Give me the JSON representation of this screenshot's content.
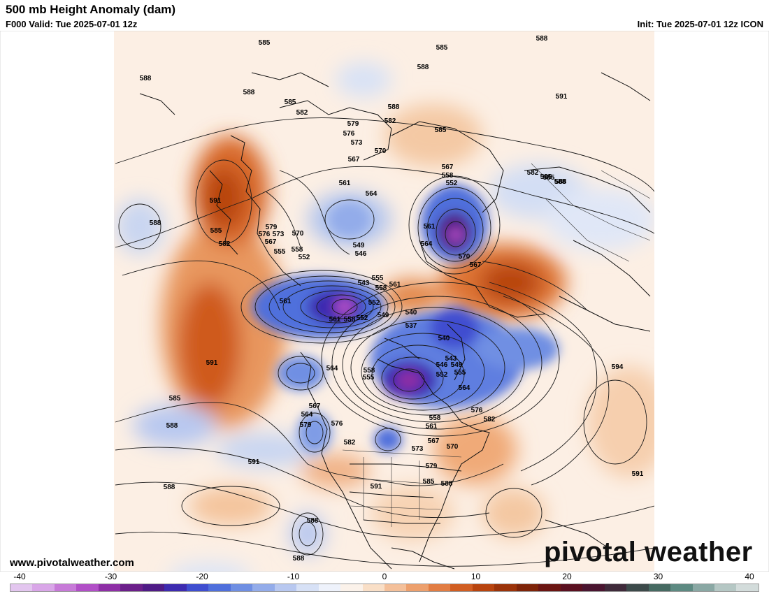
{
  "header": {
    "title": "500 mb Height Anomaly (dam)",
    "valid": "F000 Valid: Tue 2025-07-01 12z",
    "init": "Init: Tue 2025-07-01 12z ICON"
  },
  "footer": {
    "website": "www.pivotalweather.com",
    "brand": "pivotal weather"
  },
  "colorbar": {
    "ticks": [
      "-40",
      "-30",
      "-20",
      "-10",
      "0",
      "10",
      "20",
      "30",
      "40"
    ],
    "colors": [
      "#e3c6ef",
      "#d9a6e8",
      "#c77ad8",
      "#b14fc7",
      "#8e2fa6",
      "#6b1f8a",
      "#4f1b86",
      "#3d2bb0",
      "#3f4ed0",
      "#4f6fdc",
      "#6f8fe3",
      "#93acea",
      "#b8c8f0",
      "#d7e1f6",
      "#eef2fb",
      "#fbf2ea",
      "#f9dfc7",
      "#f4c09a",
      "#eda06d",
      "#e27d43",
      "#d15e22",
      "#b8440e",
      "#9b3309",
      "#7e2408",
      "#6b1512",
      "#5a1020",
      "#4a1530",
      "#3f2a3a",
      "#3c4a4a",
      "#466a62",
      "#5d8a82",
      "#8aa8a4",
      "#b5c7c4",
      "#d3dcdb"
    ]
  },
  "map": {
    "contour_labels": [
      {
        "text": "585"
      },
      {
        "text": "585"
      },
      {
        "text": "588"
      },
      {
        "text": "588"
      },
      {
        "text": "588"
      },
      {
        "text": "585"
      },
      {
        "text": "582"
      },
      {
        "text": "582"
      },
      {
        "text": "579"
      },
      {
        "text": "576"
      },
      {
        "text": "573"
      },
      {
        "text": "570"
      },
      {
        "text": "567"
      },
      {
        "text": "561"
      },
      {
        "text": "564"
      },
      {
        "text": "585"
      },
      {
        "text": "567"
      },
      {
        "text": "558"
      },
      {
        "text": "552"
      },
      {
        "text": "561"
      },
      {
        "text": "564"
      },
      {
        "text": "570"
      },
      {
        "text": "567"
      },
      {
        "text": "588"
      },
      {
        "text": "582"
      },
      {
        "text": "585"
      },
      {
        "text": "588"
      },
      {
        "text": "591"
      },
      {
        "text": "585"
      },
      {
        "text": "582"
      },
      {
        "text": "579"
      },
      {
        "text": "576"
      },
      {
        "text": "573"
      },
      {
        "text": "567"
      },
      {
        "text": "570"
      },
      {
        "text": "555"
      },
      {
        "text": "558"
      },
      {
        "text": "552"
      },
      {
        "text": "549"
      },
      {
        "text": "546"
      },
      {
        "text": "543"
      },
      {
        "text": "555"
      },
      {
        "text": "558"
      },
      {
        "text": "561"
      },
      {
        "text": "552"
      },
      {
        "text": "561"
      },
      {
        "text": "561"
      },
      {
        "text": "558"
      },
      {
        "text": "552"
      },
      {
        "text": "549"
      },
      {
        "text": "540"
      },
      {
        "text": "537"
      },
      {
        "text": "540"
      },
      {
        "text": "543"
      },
      {
        "text": "546"
      },
      {
        "text": "549"
      },
      {
        "text": "552"
      },
      {
        "text": "555"
      },
      {
        "text": "558"
      },
      {
        "text": "564"
      },
      {
        "text": "555"
      },
      {
        "text": "588"
      },
      {
        "text": "591"
      },
      {
        "text": "585"
      },
      {
        "text": "588"
      },
      {
        "text": "567"
      },
      {
        "text": "564"
      },
      {
        "text": "579"
      },
      {
        "text": "576"
      },
      {
        "text": "582"
      },
      {
        "text": "558"
      },
      {
        "text": "561"
      },
      {
        "text": "567"
      },
      {
        "text": "573"
      },
      {
        "text": "570"
      },
      {
        "text": "579"
      },
      {
        "text": "585"
      },
      {
        "text": "588"
      },
      {
        "text": "564"
      },
      {
        "text": "576"
      },
      {
        "text": "582"
      },
      {
        "text": "594"
      },
      {
        "text": "591"
      },
      {
        "text": "591"
      },
      {
        "text": "591"
      },
      {
        "text": "588"
      },
      {
        "text": "585"
      },
      {
        "text": "588"
      },
      {
        "text": "588"
      },
      {
        "text": "591"
      },
      {
        "text": "588"
      },
      {
        "text": "588"
      }
    ]
  }
}
